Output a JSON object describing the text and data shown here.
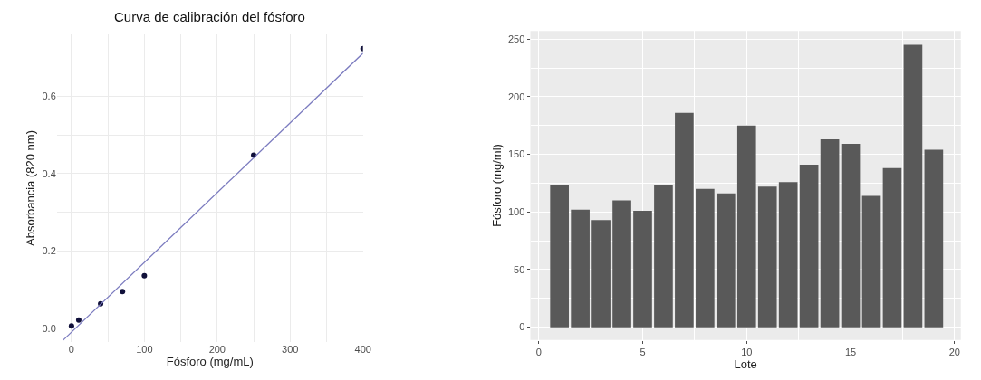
{
  "chart_data": [
    {
      "type": "scatter",
      "title": "Curva de calibración del fósforo",
      "xlabel": "Fósforo (mg/mL)",
      "ylabel": "Absorbancia (820 nm)",
      "series": [
        {
          "type": "scatter",
          "color": "#10103a",
          "x": [
            0,
            10,
            40,
            70,
            100,
            250,
            400
          ],
          "values": [
            0.006,
            0.021,
            0.063,
            0.095,
            0.136,
            0.448,
            0.724
          ],
          "marker": "circle"
        },
        {
          "type": "line",
          "color": "#7b7bbf",
          "x": [
            -12,
            400
          ],
          "values": [
            -0.032,
            0.712
          ]
        }
      ],
      "xlim": [
        -20,
        400
      ],
      "xticks": [
        0,
        100,
        200,
        300,
        400
      ],
      "ylim": [
        -0.035,
        0.76
      ],
      "yticks": [
        {
          "value": 0,
          "label": "0.0"
        },
        0.2,
        0.4,
        0.6
      ],
      "grid": true
    },
    {
      "type": "bar",
      "xlabel": "Lote",
      "ylabel": "Fósforo (mg/ml)",
      "color": "#595959",
      "x": [
        1,
        2,
        3,
        4,
        5,
        6,
        7,
        8,
        9,
        10,
        11,
        12,
        13,
        14,
        15,
        16,
        17,
        18,
        19
      ],
      "values": [
        123,
        102,
        93,
        110,
        101,
        123,
        186,
        120,
        116,
        175,
        122,
        126,
        141,
        163,
        159,
        114,
        138,
        245,
        154
      ],
      "xlim": [
        -0.4,
        20.3
      ],
      "xticks": [
        0,
        5,
        10,
        15,
        20
      ],
      "ylim": [
        -11,
        257
      ],
      "yticks": [
        0,
        50,
        100,
        150,
        200,
        250
      ],
      "grid": true
    }
  ]
}
